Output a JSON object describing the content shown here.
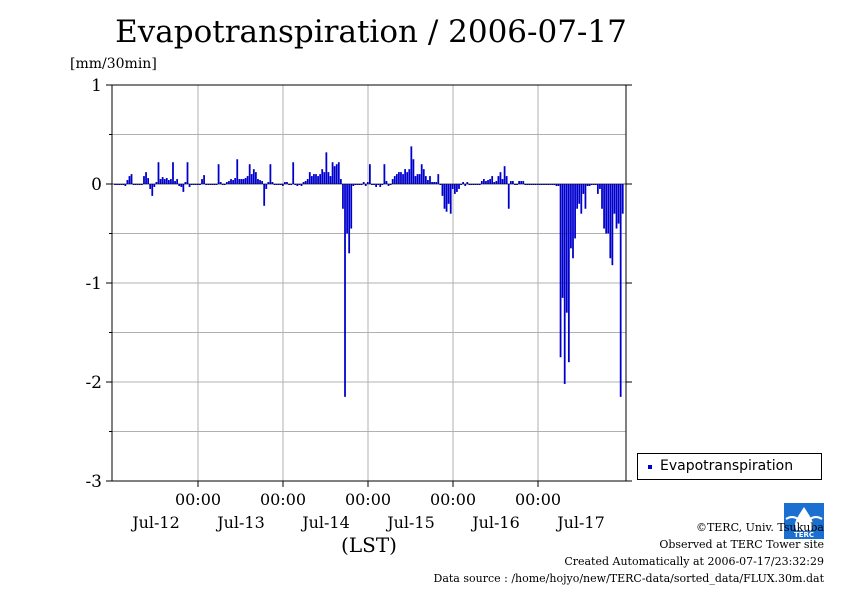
{
  "chart_data": {
    "type": "bar",
    "title": "Evapotranspiration / 2006-07-17",
    "ylabel": "[mm/30min]",
    "xlabel": "(LST)",
    "ylim": [
      -3,
      1
    ],
    "yticks": [
      "1",
      "0",
      "-1",
      "-2",
      "-3"
    ],
    "xticks_time": [
      "00:00",
      "00:00",
      "00:00",
      "00:00",
      "00:00"
    ],
    "xticks_date": [
      "Jul-12",
      "Jul-13",
      "Jul-14",
      "Jul-15",
      "Jul-16",
      "Jul-17"
    ],
    "grid": true,
    "legend_position": "right",
    "series": [
      {
        "name": "Evapotranspiration",
        "color": "#0000cc",
        "values": [
          0,
          0,
          0,
          0,
          0,
          -0.02,
          0.04,
          0.08,
          0.1,
          0,
          0,
          0,
          0,
          0,
          0.08,
          0.12,
          0.06,
          -0.05,
          -0.12,
          -0.03,
          0.02,
          0.22,
          0.05,
          0.07,
          0.05,
          0.06,
          0.04,
          0.05,
          0.22,
          0.03,
          0.05,
          -0.02,
          -0.03,
          -0.08,
          0.02,
          0.22,
          -0.03,
          0,
          0,
          0,
          0,
          0,
          0.05,
          0.09,
          0,
          0,
          0,
          0,
          0,
          0,
          0.2,
          0.02,
          0,
          0,
          0.02,
          0.03,
          0.05,
          0.04,
          0.06,
          0.25,
          0.05,
          0.05,
          0.05,
          0.06,
          0.08,
          0.2,
          0.1,
          0.15,
          0.12,
          0.05,
          0.04,
          0.03,
          -0.22,
          -0.05,
          0.02,
          0.2,
          0.02,
          0,
          0,
          0,
          0,
          -0.02,
          0.02,
          0.02,
          0,
          0,
          0.22,
          0,
          -0.02,
          0,
          -0.02,
          0.02,
          0.03,
          0.05,
          0.12,
          0.08,
          0.1,
          0.1,
          0.08,
          0.1,
          0.15,
          0.12,
          0.32,
          0.12,
          0.08,
          0.22,
          0.18,
          0.2,
          0.22,
          0.05,
          -0.25,
          -2.15,
          -0.5,
          -0.7,
          -0.45,
          -0.02,
          0,
          0,
          0,
          0,
          0.02,
          -0.02,
          0.02,
          0.2,
          0,
          0,
          -0.03,
          0,
          -0.03,
          0,
          0.2,
          0.03,
          -0.02,
          0,
          0.05,
          0.08,
          0.1,
          0.12,
          0.12,
          0.1,
          0.15,
          0.12,
          0.15,
          0.38,
          0.25,
          0.08,
          0.1,
          0.1,
          0.2,
          0.15,
          0.08,
          0.04,
          0.08,
          0.02,
          0.02,
          0.02,
          0.1,
          0,
          -0.12,
          -0.25,
          -0.28,
          -0.2,
          -0.3,
          -0.05,
          -0.1,
          -0.08,
          -0.05,
          0,
          0.02,
          -0.02,
          0.02,
          0,
          0,
          0,
          0,
          0,
          0,
          0.03,
          0.05,
          0.03,
          0.04,
          0.05,
          0.08,
          0.02,
          0.03,
          0.08,
          0.12,
          0.05,
          0.18,
          0.08,
          -0.25,
          0.03,
          0.03,
          0,
          0,
          0.03,
          0.03,
          0.03,
          0,
          0,
          0,
          0,
          0,
          0,
          0,
          0,
          0,
          0,
          0,
          0,
          0,
          0,
          0,
          -0.02,
          -0.02,
          -1.75,
          -1.15,
          -2.02,
          -1.3,
          -1.8,
          -0.65,
          -0.75,
          -0.55,
          -0.25,
          -0.2,
          -0.3,
          -0.1,
          -0.25,
          -0.02,
          -0.02,
          0,
          0,
          0,
          -0.1,
          -0.05,
          -0.25,
          -0.45,
          -0.5,
          -0.5,
          -0.75,
          -0.82,
          -0.3,
          -0.45,
          -0.4,
          -2.15,
          -0.3
        ]
      }
    ]
  },
  "credits": {
    "copyright": "©TERC, Univ. Tsukuba",
    "observed": "Observed at TERC Tower site",
    "created": "Created Automatically at 2006-07-17/23:32:29",
    "source": "Data source : /home/hojyo/new/TERC-data/sorted_data/FLUX.30m.dat",
    "logo_text": "TERC"
  }
}
